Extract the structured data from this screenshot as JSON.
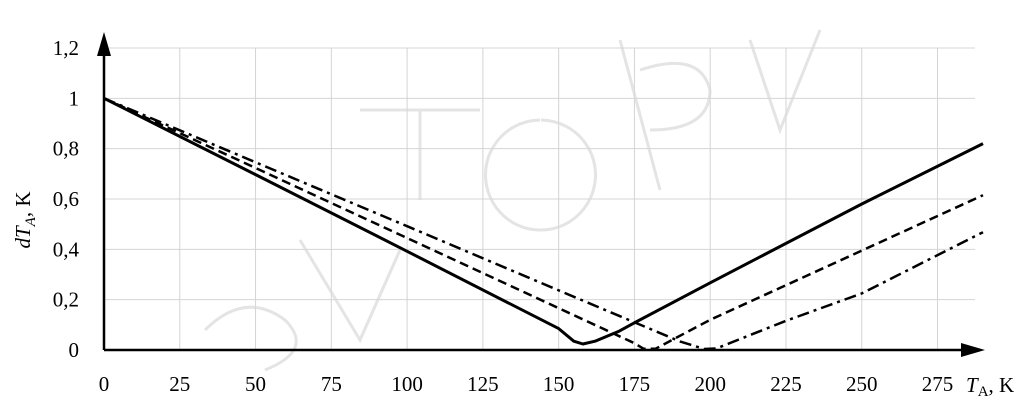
{
  "chart_data": {
    "type": "line",
    "title": "",
    "xlabel_prefix": "T",
    "xlabel_sub": "A",
    "xlabel_suffix": ", K",
    "ylabel_prefix": "dT",
    "ylabel_sub": "A",
    "ylabel_suffix": ", K",
    "xlim": [
      0,
      290
    ],
    "ylim": [
      0,
      1.2
    ],
    "x_ticks": [
      "0",
      "25",
      "50",
      "75",
      "100",
      "125",
      "150",
      "175",
      "200",
      "225",
      "250",
      "275"
    ],
    "y_ticks": [
      "0",
      "0,2",
      "0,4",
      "0,6",
      "0,8",
      "1",
      "1,2"
    ],
    "grid": true,
    "series": [
      {
        "style": "solid",
        "x": [
          0,
          50,
          100,
          150,
          155,
          158,
          162,
          170,
          175,
          200,
          250,
          290
        ],
        "y": [
          1.0,
          0.697,
          0.392,
          0.085,
          0.035,
          0.024,
          0.035,
          0.075,
          0.108,
          0.267,
          0.58,
          0.82
        ]
      },
      {
        "style": "dashed",
        "x": [
          0,
          50,
          100,
          150,
          175,
          178,
          182,
          200,
          250,
          290
        ],
        "y": [
          1.0,
          0.723,
          0.445,
          0.166,
          0.027,
          0.005,
          0.005,
          0.12,
          0.395,
          0.615
        ]
      },
      {
        "style": "dash-dot",
        "x": [
          0,
          50,
          100,
          150,
          175,
          190,
          198,
          202,
          225,
          250,
          290
        ],
        "y": [
          1.0,
          0.746,
          0.492,
          0.237,
          0.11,
          0.034,
          0.004,
          0.006,
          0.116,
          0.225,
          0.468
        ]
      }
    ]
  }
}
